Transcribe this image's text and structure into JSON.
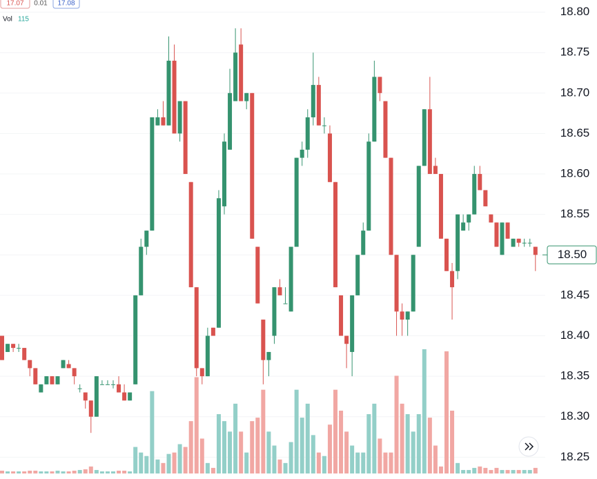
{
  "chart_data": {
    "type": "candlestick",
    "header": {
      "low_box": 17.07,
      "change": 0.01,
      "high_box": 17.08,
      "volume_label": "Vol",
      "volume_value": 115
    },
    "ylim": [
      18.223,
      18.815
    ],
    "yticks": [
      18.25,
      {
        "value": 18.3,
        "label": "18.30"
      },
      18.35,
      {
        "value": 18.4,
        "label": "18.40"
      },
      18.45,
      {
        "value": 18.5,
        "label": "18.50"
      },
      18.55,
      {
        "value": 18.6,
        "label": "18.60"
      },
      18.65,
      {
        "value": 18.7,
        "label": "18.70"
      },
      18.75,
      {
        "value": 18.8,
        "label": "18.80"
      }
    ],
    "grid": true,
    "up_color": "#35936f",
    "down_color": "#d9534f",
    "volume_up_color": "#93cfc8",
    "volume_down_color": "#f1a7a3",
    "last_price": {
      "value": 18.5,
      "label": "18.50"
    },
    "ohlc": [
      [
        18.4,
        18.4,
        18.37,
        18.37
      ],
      [
        18.38,
        18.39,
        18.38,
        18.39
      ],
      [
        18.39,
        18.39,
        18.38,
        18.385
      ],
      [
        18.385,
        18.39,
        18.38,
        18.385
      ],
      [
        18.385,
        18.385,
        18.37,
        18.37
      ],
      [
        18.37,
        18.37,
        18.35,
        18.36
      ],
      [
        18.36,
        18.36,
        18.34,
        18.34
      ],
      [
        18.33,
        18.34,
        18.33,
        18.34
      ],
      [
        18.34,
        18.35,
        18.34,
        18.35
      ],
      [
        18.35,
        18.35,
        18.34,
        18.34
      ],
      [
        18.34,
        18.35,
        18.34,
        18.35
      ],
      [
        18.36,
        18.37,
        18.36,
        18.37
      ],
      [
        18.365,
        18.37,
        18.36,
        18.36
      ],
      [
        18.36,
        18.36,
        18.34,
        18.35
      ],
      [
        18.335,
        18.34,
        18.33,
        18.335
      ],
      [
        18.33,
        18.33,
        18.31,
        18.32
      ],
      [
        18.32,
        18.32,
        18.28,
        18.3
      ],
      [
        18.3,
        18.35,
        18.3,
        18.35
      ],
      [
        18.34,
        18.345,
        18.34,
        18.34
      ],
      [
        18.34,
        18.345,
        18.34,
        18.34
      ],
      [
        18.34,
        18.345,
        18.335,
        18.34
      ],
      [
        18.34,
        18.35,
        18.33,
        18.33
      ],
      [
        18.33,
        18.34,
        18.32,
        18.32
      ],
      [
        18.32,
        18.33,
        18.32,
        18.33
      ],
      [
        18.34,
        18.45,
        18.34,
        18.45
      ],
      [
        18.45,
        18.52,
        18.45,
        18.51
      ],
      [
        18.51,
        18.53,
        18.5,
        18.53
      ],
      [
        18.53,
        18.67,
        18.53,
        18.67
      ],
      [
        18.66,
        18.68,
        18.66,
        18.67
      ],
      [
        18.67,
        18.69,
        18.66,
        18.66
      ],
      [
        18.66,
        18.77,
        18.66,
        18.74
      ],
      [
        18.74,
        18.76,
        18.65,
        18.65
      ],
      [
        18.65,
        18.69,
        18.64,
        18.69
      ],
      [
        18.69,
        18.69,
        18.6,
        18.6
      ],
      [
        18.59,
        18.59,
        18.46,
        18.46
      ],
      [
        18.46,
        18.46,
        18.35,
        18.36
      ],
      [
        18.36,
        18.36,
        18.34,
        18.35
      ],
      [
        18.35,
        18.41,
        18.35,
        18.4
      ],
      [
        18.41,
        18.41,
        18.4,
        18.4
      ],
      [
        18.41,
        18.58,
        18.41,
        18.57
      ],
      [
        18.56,
        18.65,
        18.55,
        18.64
      ],
      [
        18.63,
        18.73,
        18.63,
        18.7
      ],
      [
        18.69,
        18.78,
        18.69,
        18.75
      ],
      [
        18.76,
        18.78,
        18.69,
        18.69
      ],
      [
        18.69,
        18.7,
        18.68,
        18.7
      ],
      [
        18.7,
        18.7,
        18.52,
        18.52
      ],
      [
        18.51,
        18.51,
        18.44,
        18.44
      ],
      [
        18.42,
        18.42,
        18.34,
        18.37
      ],
      [
        18.37,
        18.38,
        18.35,
        18.38
      ],
      [
        18.4,
        18.46,
        18.39,
        18.46
      ],
      [
        18.46,
        18.47,
        18.45,
        18.45
      ],
      [
        18.44,
        18.46,
        18.44,
        18.44
      ],
      [
        18.43,
        18.51,
        18.43,
        18.51
      ],
      [
        18.51,
        18.62,
        18.51,
        18.62
      ],
      [
        18.62,
        18.64,
        18.61,
        18.63
      ],
      [
        18.63,
        18.68,
        18.62,
        18.67
      ],
      [
        18.67,
        18.75,
        18.66,
        18.71
      ],
      [
        18.71,
        18.72,
        18.66,
        18.66
      ],
      [
        18.66,
        18.67,
        18.65,
        18.66
      ],
      [
        18.65,
        18.66,
        18.59,
        18.59
      ],
      [
        18.59,
        18.59,
        18.46,
        18.46
      ],
      [
        18.45,
        18.45,
        18.4,
        18.4
      ],
      [
        18.4,
        18.4,
        18.36,
        18.39
      ],
      [
        18.38,
        18.45,
        18.35,
        18.45
      ],
      [
        18.45,
        18.5,
        18.45,
        18.5
      ],
      [
        18.5,
        18.54,
        18.5,
        18.53
      ],
      [
        18.53,
        18.65,
        18.53,
        18.64
      ],
      [
        18.64,
        18.74,
        18.64,
        18.72
      ],
      [
        18.72,
        18.72,
        18.69,
        18.7
      ],
      [
        18.69,
        18.69,
        18.62,
        18.62
      ],
      [
        18.62,
        18.62,
        18.5,
        18.5
      ],
      [
        18.5,
        18.5,
        18.4,
        18.43
      ],
      [
        18.43,
        18.44,
        18.4,
        18.42
      ],
      [
        18.42,
        18.43,
        18.4,
        18.43
      ],
      [
        18.43,
        18.5,
        18.43,
        18.5
      ],
      [
        18.51,
        18.61,
        18.51,
        18.61
      ],
      [
        18.61,
        18.68,
        18.61,
        18.68
      ],
      [
        18.68,
        18.72,
        18.6,
        18.6
      ],
      [
        18.61,
        18.62,
        18.6,
        18.6
      ],
      [
        18.6,
        18.6,
        18.52,
        18.52
      ],
      [
        18.52,
        18.52,
        18.48,
        18.48
      ],
      [
        18.48,
        18.49,
        18.42,
        18.46
      ],
      [
        18.48,
        18.55,
        18.47,
        18.55
      ],
      [
        18.53,
        18.55,
        18.53,
        18.54
      ],
      [
        18.54,
        18.55,
        18.53,
        18.55
      ],
      [
        18.55,
        18.61,
        18.55,
        18.6
      ],
      [
        18.6,
        18.61,
        18.58,
        18.58
      ],
      [
        18.58,
        18.58,
        18.56,
        18.56
      ],
      [
        18.55,
        18.55,
        18.54,
        18.54
      ],
      [
        18.54,
        18.54,
        18.51,
        18.51
      ],
      [
        18.5,
        18.54,
        18.5,
        18.54
      ],
      [
        18.54,
        18.54,
        18.52,
        18.52
      ],
      [
        18.51,
        18.52,
        18.51,
        18.52
      ],
      [
        18.52,
        18.52,
        18.51,
        18.515
      ],
      [
        18.515,
        18.52,
        18.51,
        18.515
      ],
      [
        18.515,
        18.52,
        18.51,
        18.515
      ],
      [
        18.51,
        18.51,
        18.48,
        18.5
      ]
    ],
    "volume": [
      4,
      3,
      3,
      3,
      3,
      4,
      4,
      3,
      3,
      3,
      4,
      3,
      3,
      4,
      5,
      6,
      10,
      5,
      3,
      3,
      3,
      4,
      4,
      3,
      38,
      30,
      25,
      118,
      20,
      15,
      28,
      30,
      42,
      38,
      75,
      138,
      50,
      15,
      8,
      85,
      75,
      60,
      100,
      60,
      30,
      75,
      80,
      120,
      60,
      40,
      20,
      15,
      45,
      120,
      80,
      100,
      55,
      30,
      25,
      70,
      120,
      90,
      60,
      40,
      30,
      30,
      85,
      100,
      50,
      30,
      30,
      140,
      100,
      85,
      60,
      85,
      178,
      80,
      40,
      10,
      175,
      90,
      15,
      5,
      5,
      8,
      10,
      8,
      5,
      8,
      5,
      5,
      5,
      5,
      5,
      5,
      8
    ]
  }
}
